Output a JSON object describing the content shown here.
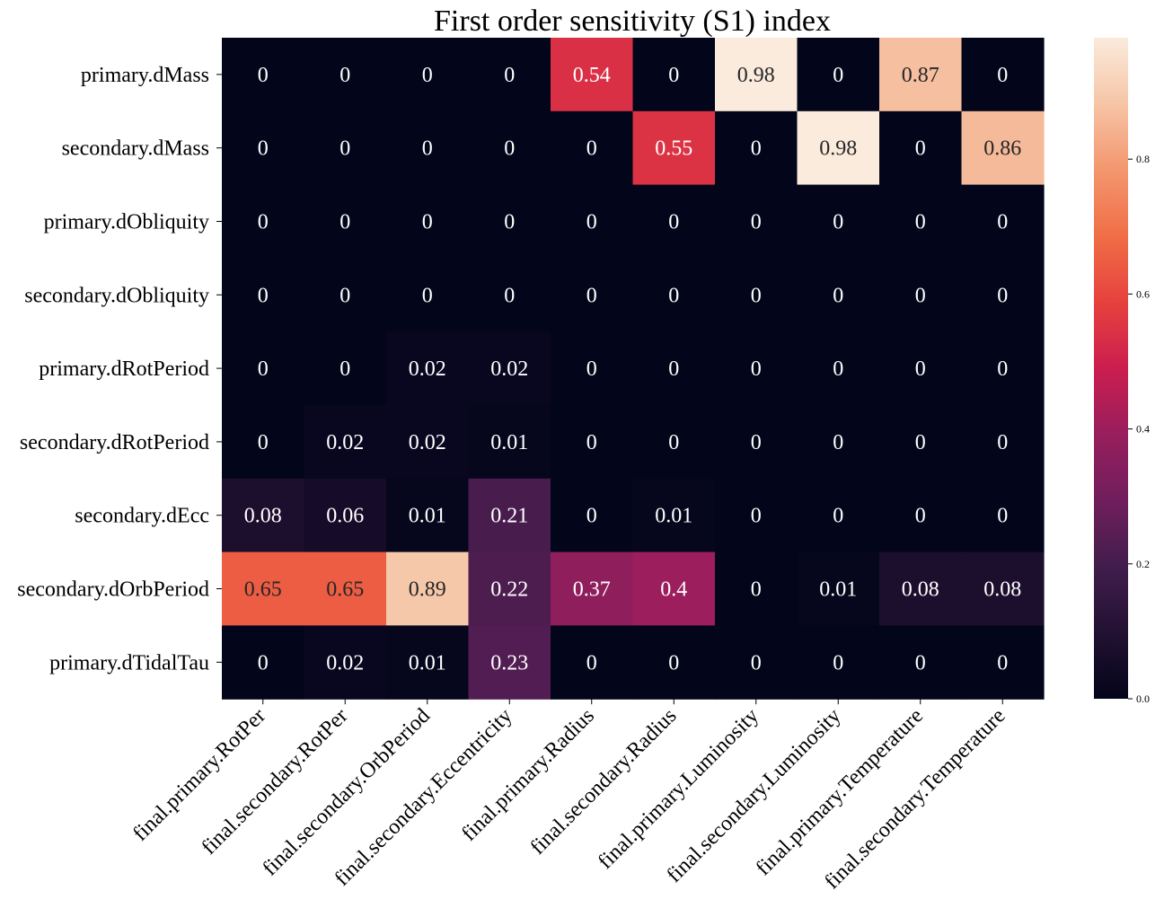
{
  "chart_data": {
    "type": "heatmap",
    "title": "First order sensitivity (S1) index",
    "rows": [
      "primary.dMass",
      "secondary.dMass",
      "primary.dObliquity",
      "secondary.dObliquity",
      "primary.dRotPeriod",
      "secondary.dRotPeriod",
      "secondary.dEcc",
      "secondary.dOrbPeriod",
      "primary.dTidalTau"
    ],
    "columns": [
      "final.primary.RotPer",
      "final.secondary.RotPer",
      "final.secondary.OrbPeriod",
      "final.secondary.Eccentricity",
      "final.primary.Radius",
      "final.secondary.Radius",
      "final.primary.Luminosity",
      "final.secondary.Luminosity",
      "final.primary.Temperature",
      "final.secondary.Temperature"
    ],
    "values": [
      [
        0,
        0,
        0,
        0,
        0.54,
        0,
        0.98,
        0,
        0.87,
        0
      ],
      [
        0,
        0,
        0,
        0,
        0,
        0.55,
        0,
        0.98,
        0,
        0.86
      ],
      [
        0,
        0,
        0,
        0,
        0,
        0,
        0,
        0,
        0,
        0
      ],
      [
        0,
        0,
        0,
        0,
        0,
        0,
        0,
        0,
        0,
        0
      ],
      [
        0,
        0,
        0.02,
        0.02,
        0,
        0,
        0,
        0,
        0,
        0
      ],
      [
        0,
        0.02,
        0.02,
        0.01,
        0,
        0,
        0,
        0,
        0,
        0
      ],
      [
        0.08,
        0.06,
        0.01,
        0.21,
        0,
        0.01,
        0,
        0,
        0,
        0
      ],
      [
        0.65,
        0.65,
        0.89,
        0.22,
        0.37,
        0.4,
        0,
        0.01,
        0.08,
        0.08
      ],
      [
        0,
        0.02,
        0.01,
        0.23,
        0,
        0,
        0,
        0,
        0,
        0
      ]
    ],
    "colorbar": {
      "range": [
        0,
        0.98
      ],
      "ticks": [
        "0.0",
        "0.2",
        "0.4",
        "0.6",
        "0.8"
      ],
      "colormap": "rocket"
    }
  }
}
